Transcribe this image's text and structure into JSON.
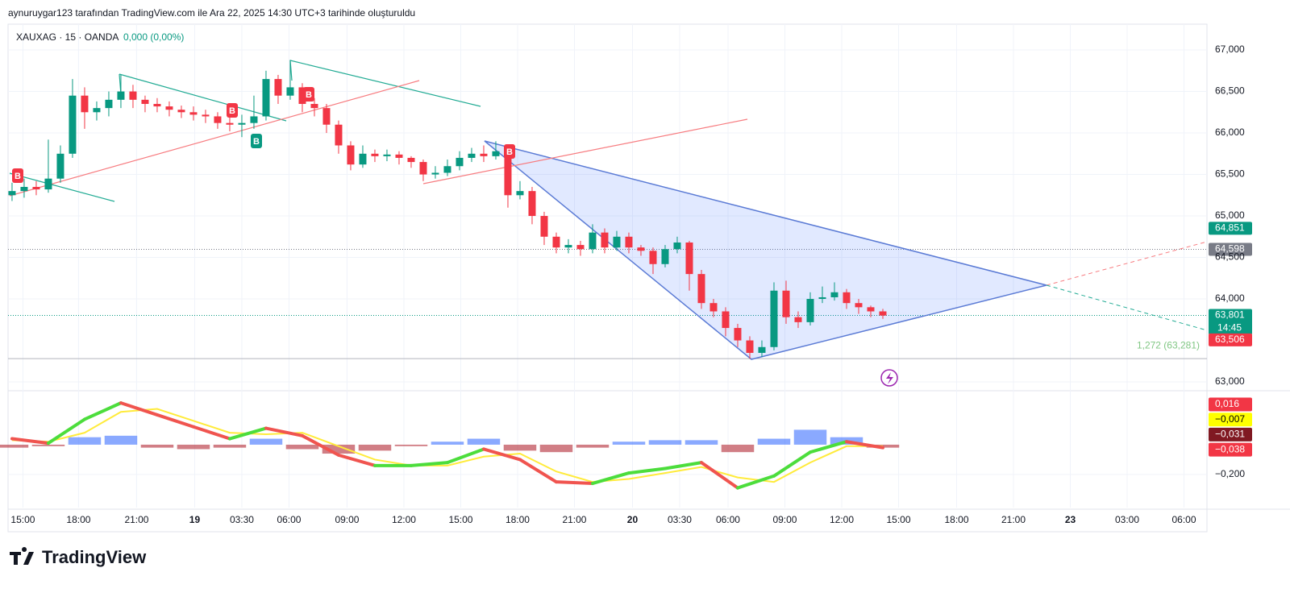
{
  "header": {
    "text": "aynuruygar123 tarafından TradingView.com ile Ara 22, 2025 14:30 UTC+3 tarihinde oluşturuldu"
  },
  "brand": "TradingView",
  "chart_data": {
    "type": "candlestick",
    "symbol": "XAUXAG · 15 · OANDA",
    "change": "0,000 (0,00%)",
    "up_color": "#089981",
    "down_color": "#f23645",
    "x": [
      0,
      1,
      2,
      3,
      4,
      5,
      6,
      7,
      8,
      9,
      10,
      11,
      12,
      13,
      14,
      15,
      16,
      17,
      18,
      19,
      20,
      21,
      22,
      23,
      24,
      25,
      26,
      27,
      28,
      29,
      30,
      31,
      32,
      33,
      34,
      35,
      36,
      37,
      38,
      39,
      40,
      41,
      42,
      43,
      44,
      45,
      46,
      47,
      48,
      49,
      50,
      51,
      52,
      53,
      54,
      55,
      56,
      57,
      58,
      59,
      60,
      61,
      62,
      63,
      64,
      65,
      66,
      67,
      68,
      69,
      70,
      71,
      72
    ],
    "open": [
      65.25,
      65.3,
      65.35,
      65.32,
      65.45,
      65.75,
      66.45,
      66.25,
      66.3,
      66.4,
      66.5,
      66.4,
      66.35,
      66.32,
      66.28,
      66.25,
      66.22,
      66.2,
      66.12,
      66.1,
      66.12,
      66.2,
      66.65,
      66.45,
      66.55,
      66.35,
      66.3,
      66.1,
      65.85,
      65.62,
      65.75,
      65.72,
      65.74,
      65.7,
      65.65,
      65.5,
      65.52,
      65.6,
      65.7,
      65.75,
      65.72,
      65.78,
      65.25,
      65.3,
      65.0,
      64.75,
      64.62,
      64.65,
      64.6,
      64.8,
      64.62,
      64.75,
      64.62,
      64.58,
      64.42,
      64.6,
      64.68,
      64.3,
      63.95,
      63.85,
      63.65,
      63.5,
      63.35,
      63.42,
      64.1,
      63.78,
      63.72,
      64.0,
      64.02,
      64.08,
      63.95,
      63.9,
      63.85
    ],
    "high": [
      65.4,
      65.45,
      65.42,
      65.92,
      65.85,
      66.65,
      66.55,
      66.38,
      66.5,
      66.7,
      66.58,
      66.45,
      66.42,
      66.38,
      66.33,
      66.32,
      66.28,
      66.25,
      66.2,
      66.22,
      66.45,
      66.75,
      66.7,
      66.88,
      66.6,
      66.42,
      66.35,
      66.15,
      65.9,
      65.85,
      65.8,
      65.8,
      65.78,
      65.72,
      65.68,
      65.6,
      65.68,
      65.78,
      65.82,
      65.85,
      65.9,
      65.85,
      65.42,
      65.35,
      65.05,
      64.8,
      64.72,
      64.7,
      64.9,
      64.85,
      64.82,
      64.8,
      64.65,
      64.62,
      64.65,
      64.75,
      64.7,
      64.35,
      64.0,
      63.9,
      63.7,
      63.55,
      63.5,
      64.2,
      64.22,
      63.85,
      64.08,
      64.15,
      64.2,
      64.12,
      64.0,
      63.92,
      63.88
    ],
    "low": [
      65.18,
      65.22,
      65.25,
      65.28,
      65.4,
      65.7,
      66.05,
      66.15,
      66.2,
      66.3,
      66.3,
      66.25,
      66.25,
      66.2,
      66.18,
      66.15,
      66.12,
      66.05,
      66.02,
      65.95,
      66.05,
      66.15,
      66.35,
      66.4,
      66.25,
      66.2,
      66.0,
      65.75,
      65.55,
      65.58,
      65.65,
      65.66,
      65.62,
      65.58,
      65.42,
      65.45,
      65.48,
      65.55,
      65.65,
      65.65,
      65.68,
      65.1,
      65.2,
      64.9,
      64.65,
      64.55,
      64.55,
      64.52,
      64.55,
      64.55,
      64.58,
      64.55,
      64.52,
      64.3,
      64.38,
      64.55,
      64.1,
      63.88,
      63.78,
      63.55,
      63.42,
      63.28,
      63.3,
      63.38,
      63.7,
      63.65,
      63.68,
      63.95,
      63.98,
      63.88,
      63.82,
      63.78,
      63.76
    ],
    "close": [
      65.3,
      65.35,
      65.32,
      65.45,
      65.75,
      66.45,
      66.25,
      66.3,
      66.4,
      66.5,
      66.4,
      66.35,
      66.32,
      66.28,
      66.25,
      66.22,
      66.2,
      66.12,
      66.1,
      66.12,
      66.2,
      66.65,
      66.45,
      66.55,
      66.35,
      66.3,
      66.1,
      65.85,
      65.62,
      65.75,
      65.72,
      65.74,
      65.7,
      65.65,
      65.5,
      65.52,
      65.6,
      65.7,
      65.75,
      65.72,
      65.78,
      65.25,
      65.3,
      65.0,
      64.75,
      64.62,
      64.65,
      64.6,
      64.8,
      64.62,
      64.75,
      64.62,
      64.58,
      64.42,
      64.6,
      64.68,
      64.3,
      63.95,
      63.85,
      63.65,
      63.5,
      63.35,
      63.42,
      64.1,
      63.78,
      63.72,
      64.0,
      64.02,
      64.08,
      63.95,
      63.9,
      63.85,
      63.8
    ],
    "xlim": [
      -0.33,
      98.8
    ],
    "xticks": [
      {
        "value": 0.9,
        "label": "15:00"
      },
      {
        "value": 5.5,
        "label": "18:00"
      },
      {
        "value": 10.3,
        "label": "21:00"
      },
      {
        "value": 15.1,
        "label": "19"
      },
      {
        "value": 19.0,
        "label": "03:30"
      },
      {
        "value": 22.9,
        "label": "06:00"
      },
      {
        "value": 27.7,
        "label": "09:00"
      },
      {
        "value": 32.4,
        "label": "12:00"
      },
      {
        "value": 37.1,
        "label": "15:00"
      },
      {
        "value": 41.8,
        "label": "18:00"
      },
      {
        "value": 46.5,
        "label": "21:00"
      },
      {
        "value": 51.3,
        "label": "20"
      },
      {
        "value": 55.2,
        "label": "03:30"
      },
      {
        "value": 59.2,
        "label": "06:00"
      },
      {
        "value": 63.9,
        "label": "09:00"
      },
      {
        "value": 68.6,
        "label": "12:00"
      },
      {
        "value": 73.3,
        "label": "15:00"
      },
      {
        "value": 78.1,
        "label": "18:00"
      },
      {
        "value": 82.8,
        "label": "21:00"
      },
      {
        "value": 87.5,
        "label": "23"
      },
      {
        "value": 92.2,
        "label": "03:00"
      },
      {
        "value": 96.9,
        "label": "06:00"
      }
    ],
    "ylim": [
      62.913,
      67.311
    ],
    "yticks": [
      {
        "value": 63,
        "label": "63,000"
      },
      {
        "value": 64,
        "label": "64,000"
      },
      {
        "value": 64.5,
        "label": "64,500"
      },
      {
        "value": 65,
        "label": "65,000"
      },
      {
        "value": 65.5,
        "label": "65,500"
      },
      {
        "value": 66,
        "label": "66,000"
      },
      {
        "value": 66.5,
        "label": "66,500"
      },
      {
        "value": 67,
        "label": "67,000"
      }
    ],
    "grid": true,
    "price_labels": [
      {
        "value": 64.851,
        "label": "64,851",
        "color": "#089981"
      },
      {
        "value": 64.598,
        "label": "64,598",
        "color": "#787b86"
      },
      {
        "value": 63.801,
        "label": "63,801",
        "color": "#089981"
      },
      {
        "value": 63.506,
        "label": "63,506",
        "color": "#f23645"
      }
    ],
    "countdown": "14:45",
    "fib_level": 63.281,
    "fib_label": "1,272 (63,281)",
    "signals": [
      "B",
      "B",
      "B",
      "B",
      "B"
    ],
    "indicator": {
      "x": [
        0,
        3,
        6,
        9,
        12,
        15,
        18,
        21,
        24,
        27,
        30,
        33,
        36,
        39,
        42,
        45,
        48,
        51,
        54,
        57,
        60,
        63,
        66,
        69,
        72
      ],
      "fast": [
        0.04,
        0.01,
        0.17,
        0.28,
        0.2,
        0.12,
        0.04,
        0.11,
        0.06,
        -0.07,
        -0.14,
        -0.14,
        -0.12,
        -0.03,
        -0.1,
        -0.25,
        -0.26,
        -0.19,
        -0.16,
        -0.12,
        -0.29,
        -0.21,
        -0.05,
        0.02,
        -0.02
      ],
      "signal": [
        0.03,
        0.02,
        0.08,
        0.22,
        0.24,
        0.16,
        0.08,
        0.07,
        0.08,
        -0.01,
        -0.1,
        -0.14,
        -0.14,
        -0.08,
        -0.06,
        -0.18,
        -0.25,
        -0.23,
        -0.19,
        -0.15,
        -0.22,
        -0.25,
        -0.12,
        -0.01,
        -0.01
      ],
      "histogram": [
        -0.02,
        -0.01,
        0.05,
        0.06,
        -0.02,
        -0.03,
        -0.02,
        0.04,
        -0.03,
        -0.06,
        -0.04,
        -0.01,
        0.02,
        0.04,
        -0.04,
        -0.05,
        -0.02,
        0.02,
        0.03,
        0.03,
        -0.05,
        0.04,
        0.1,
        0.05,
        -0.02
      ],
      "ylim": [
        -0.422,
        0.351
      ],
      "yticks": [
        {
          "value": -0.2,
          "label": "−0,200"
        }
      ],
      "badges": [
        {
          "label": "0,016",
          "color": "#f23645",
          "text": "#ffffff"
        },
        {
          "label": "−0,007",
          "color": "#ffff00",
          "text": "#000000"
        },
        {
          "label": "−0,031",
          "color": "#801922",
          "text": "#ffffff"
        },
        {
          "label": "−0,038",
          "color": "#f23645",
          "text": "#ffffff"
        }
      ]
    }
  }
}
